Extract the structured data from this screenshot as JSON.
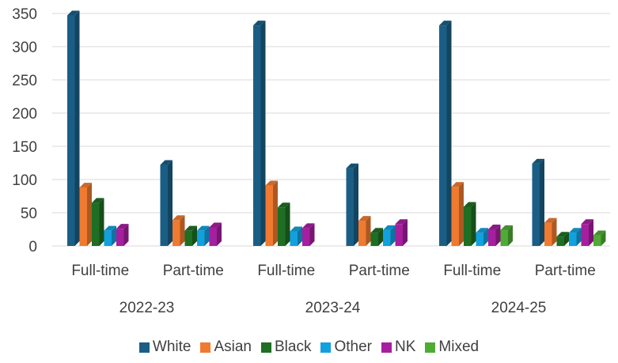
{
  "chart_data": {
    "type": "bar",
    "title": "",
    "xlabel": "",
    "ylabel": "",
    "ylim": [
      0,
      350
    ],
    "yticks": [
      "0",
      "50",
      "100",
      "150",
      "200",
      "250",
      "300",
      "350"
    ],
    "grid": true,
    "legend_position": "bottom",
    "groups": [
      {
        "label": "2022-23",
        "categories": [
          "Full-time",
          "Part-time"
        ]
      },
      {
        "label": "2023-24",
        "categories": [
          "Full-time",
          "Part-time"
        ]
      },
      {
        "label": "2024-25",
        "categories": [
          "Full-time",
          "Part-time"
        ]
      }
    ],
    "categories": [
      "Full-time",
      "Part-time",
      "Full-time",
      "Part-time",
      "Full-time",
      "Part-time"
    ],
    "series": [
      {
        "name": "White",
        "color": "#1a5e85",
        "values": [
          347,
          122,
          332,
          117,
          332,
          124
        ]
      },
      {
        "name": "Asian",
        "color": "#ef7a30",
        "values": [
          88,
          39,
          91,
          38,
          89,
          35
        ]
      },
      {
        "name": "Black",
        "color": "#1e6e23",
        "values": [
          65,
          23,
          58,
          20,
          59,
          14
        ]
      },
      {
        "name": "Other",
        "color": "#12a0de",
        "values": [
          23,
          23,
          22,
          24,
          20,
          20
        ]
      },
      {
        "name": "NK",
        "color": "#a51f9f",
        "values": [
          26,
          28,
          27,
          33,
          25,
          33
        ]
      },
      {
        "name": "Mixed",
        "color": "#4fab35",
        "values": [
          0,
          0,
          0,
          0,
          24,
          16
        ]
      }
    ]
  }
}
